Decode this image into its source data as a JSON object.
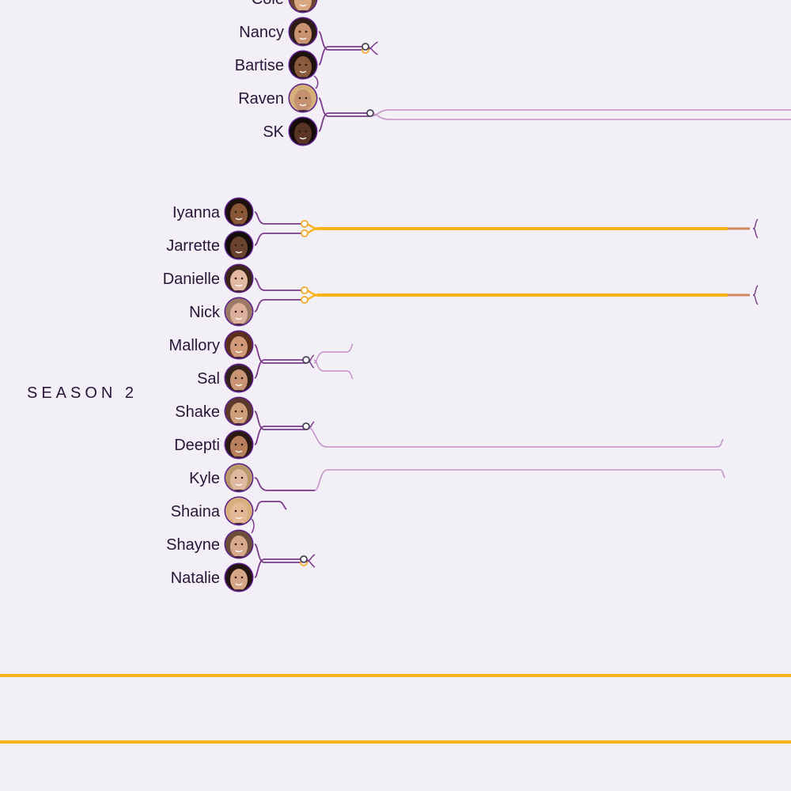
{
  "chart_data": {
    "type": "line",
    "title": "",
    "colors": {
      "background": "#f2eff6",
      "contestant_line": "#7a3a8a",
      "continued_line": "#c493c9",
      "married_line": "#f8b31c",
      "text": "#2a1438",
      "dark_marker": "#4a4258",
      "gold_marker": "#f1a92b",
      "avatar_ring": "#5b1e8c"
    },
    "groups": [
      {
        "season": "",
        "contestants": [
          {
            "name": "Cole",
            "skin": "#d9a882",
            "hair": "#6b4730"
          },
          {
            "name": "Nancy",
            "skin": "#c99372",
            "hair": "#2e1d14"
          },
          {
            "name": "Bartise",
            "skin": "#8a5a3c",
            "hair": "#1d120c"
          },
          {
            "name": "Raven",
            "skin": "#c59070",
            "hair": "#d3b07a"
          },
          {
            "name": "SK",
            "skin": "#5a3424",
            "hair": "#140c08"
          }
        ]
      },
      {
        "season": "SEASON 2",
        "contestants": [
          {
            "name": "Iyanna",
            "skin": "#8a5638",
            "hair": "#1b100a"
          },
          {
            "name": "Jarrette",
            "skin": "#6a4230",
            "hair": "#140c08"
          },
          {
            "name": "Danielle",
            "skin": "#e2b8a2",
            "hair": "#3b2418"
          },
          {
            "name": "Nick",
            "skin": "#dcb09a",
            "hair": "#9a7a66"
          },
          {
            "name": "Mallory",
            "skin": "#d09a78",
            "hair": "#5a2f1c"
          },
          {
            "name": "Sal",
            "skin": "#c99476",
            "hair": "#33221a"
          },
          {
            "name": "Shake",
            "skin": "#cf9e7a",
            "hair": "#5a3a2a"
          },
          {
            "name": "Deepti",
            "skin": "#b9805e",
            "hair": "#2a1a12"
          },
          {
            "name": "Kyle",
            "skin": "#e0b8a0",
            "hair": "#b8976a"
          },
          {
            "name": "Shaina",
            "skin": "#e3b896",
            "hair": "#d6b07c"
          },
          {
            "name": "Shayne",
            "skin": "#d8a88c",
            "hair": "#6a4e3a"
          },
          {
            "name": "Natalie",
            "skin": "#d6a486",
            "hair": "#241410"
          }
        ]
      }
    ],
    "connections": [
      {
        "a": "Nancy",
        "b": "Bartise",
        "a_marker": "gold",
        "b_marker": "dark",
        "outcome": "split"
      },
      {
        "a": "Raven",
        "b": "SK",
        "a_marker": "none",
        "b_marker": "dark",
        "outcome": "continued"
      },
      {
        "a": "Iyanna",
        "b": "Jarrette",
        "a_marker": "gold",
        "b_marker": "gold",
        "outcome": "married"
      },
      {
        "a": "Danielle",
        "b": "Nick",
        "a_marker": "gold",
        "b_marker": "gold",
        "outcome": "married"
      },
      {
        "a": "Mallory",
        "b": "Sal",
        "a_marker": "none",
        "b_marker": "dark",
        "outcome": "short"
      },
      {
        "a": "Shake",
        "b": "Deepti",
        "a_marker": "none",
        "b_marker": "dark",
        "outcome": "split"
      },
      {
        "a": "Kyle",
        "b": "Shaina",
        "a_marker": "none",
        "b_marker": "none",
        "outcome": "crossed"
      },
      {
        "a": "Shayne",
        "b": "Natalie",
        "a_marker": "gold",
        "b_marker": "dark",
        "outcome": "split"
      }
    ]
  }
}
